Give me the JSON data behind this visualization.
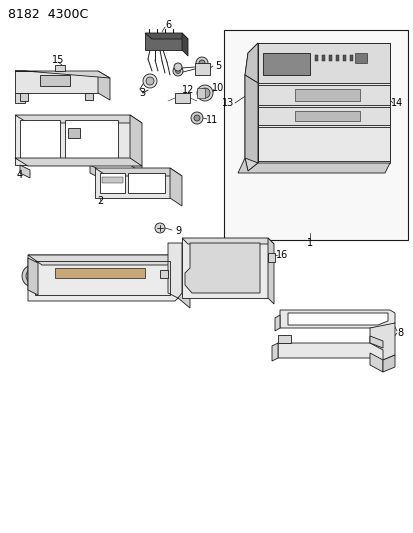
{
  "title": "8182  4300C",
  "bg_color": "#ffffff",
  "line_color": "#1a1a1a",
  "label_color": "#000000",
  "title_fontsize": 9,
  "label_fontsize": 7,
  "fig_width": 4.14,
  "fig_height": 5.33
}
